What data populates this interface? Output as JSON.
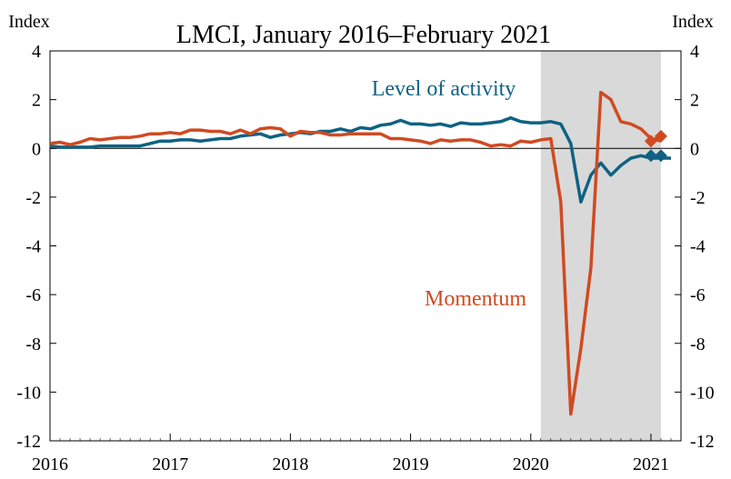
{
  "chart_data": {
    "type": "line",
    "title": "LMCI, January  2016–February  2021",
    "ylabel_left": "Index",
    "ylabel_right": "Index",
    "ylim": [
      -12,
      4
    ],
    "yticks": [
      4,
      2,
      0,
      -2,
      -4,
      -6,
      -8,
      -10,
      -12
    ],
    "xlim": [
      2016.0,
      2021.25
    ],
    "xticks": [
      2016,
      2017,
      2018,
      2019,
      2020,
      2021
    ],
    "xtick_labels": [
      "2016",
      "2017",
      "2018",
      "2019",
      "2020",
      "2021"
    ],
    "shaded_period": {
      "from": 2020.083,
      "to": 2021.083,
      "color": "#d9d9d9"
    },
    "zero_line": true,
    "grid": false,
    "series": [
      {
        "name": "Level of activity",
        "color": "#0f6283",
        "points": [
          [
            2016.0,
            0.1
          ],
          [
            2016.083,
            0.05
          ],
          [
            2016.167,
            0.05
          ],
          [
            2016.25,
            0.05
          ],
          [
            2016.333,
            0.05
          ],
          [
            2016.417,
            0.1
          ],
          [
            2016.5,
            0.1
          ],
          [
            2016.583,
            0.1
          ],
          [
            2016.667,
            0.1
          ],
          [
            2016.75,
            0.1
          ],
          [
            2016.833,
            0.2
          ],
          [
            2016.917,
            0.3
          ],
          [
            2017.0,
            0.3
          ],
          [
            2017.083,
            0.35
          ],
          [
            2017.167,
            0.35
          ],
          [
            2017.25,
            0.3
          ],
          [
            2017.333,
            0.35
          ],
          [
            2017.417,
            0.4
          ],
          [
            2017.5,
            0.4
          ],
          [
            2017.583,
            0.5
          ],
          [
            2017.667,
            0.55
          ],
          [
            2017.75,
            0.6
          ],
          [
            2017.833,
            0.45
          ],
          [
            2017.917,
            0.55
          ],
          [
            2018.0,
            0.6
          ],
          [
            2018.083,
            0.65
          ],
          [
            2018.167,
            0.6
          ],
          [
            2018.25,
            0.7
          ],
          [
            2018.333,
            0.7
          ],
          [
            2018.417,
            0.8
          ],
          [
            2018.5,
            0.7
          ],
          [
            2018.583,
            0.85
          ],
          [
            2018.667,
            0.8
          ],
          [
            2018.75,
            0.95
          ],
          [
            2018.833,
            1.0
          ],
          [
            2018.917,
            1.15
          ],
          [
            2019.0,
            1.0
          ],
          [
            2019.083,
            1.0
          ],
          [
            2019.167,
            0.95
          ],
          [
            2019.25,
            1.0
          ],
          [
            2019.333,
            0.9
          ],
          [
            2019.417,
            1.05
          ],
          [
            2019.5,
            1.0
          ],
          [
            2019.583,
            1.0
          ],
          [
            2019.667,
            1.05
          ],
          [
            2019.75,
            1.1
          ],
          [
            2019.833,
            1.25
          ],
          [
            2019.917,
            1.1
          ],
          [
            2020.0,
            1.05
          ],
          [
            2020.083,
            1.05
          ],
          [
            2020.167,
            1.1
          ],
          [
            2020.25,
            1.0
          ],
          [
            2020.333,
            0.2
          ],
          [
            2020.417,
            -2.2
          ],
          [
            2020.5,
            -1.1
          ],
          [
            2020.583,
            -0.6
          ],
          [
            2020.667,
            -1.1
          ],
          [
            2020.75,
            -0.7
          ],
          [
            2020.833,
            -0.4
          ],
          [
            2020.917,
            -0.3
          ],
          [
            2021.0,
            -0.4
          ],
          [
            2021.083,
            -0.4
          ],
          [
            2021.167,
            -0.4
          ]
        ],
        "marker_points": [
          [
            2021.0,
            -0.3
          ],
          [
            2021.083,
            -0.3
          ]
        ],
        "label": "Level of activity"
      },
      {
        "name": "Momentum",
        "color": "#d04a21",
        "points": [
          [
            2016.0,
            0.2
          ],
          [
            2016.083,
            0.25
          ],
          [
            2016.167,
            0.15
          ],
          [
            2016.25,
            0.25
          ],
          [
            2016.333,
            0.4
          ],
          [
            2016.417,
            0.35
          ],
          [
            2016.5,
            0.4
          ],
          [
            2016.583,
            0.45
          ],
          [
            2016.667,
            0.45
          ],
          [
            2016.75,
            0.5
          ],
          [
            2016.833,
            0.6
          ],
          [
            2016.917,
            0.6
          ],
          [
            2017.0,
            0.65
          ],
          [
            2017.083,
            0.6
          ],
          [
            2017.167,
            0.75
          ],
          [
            2017.25,
            0.75
          ],
          [
            2017.333,
            0.7
          ],
          [
            2017.417,
            0.7
          ],
          [
            2017.5,
            0.6
          ],
          [
            2017.583,
            0.75
          ],
          [
            2017.667,
            0.6
          ],
          [
            2017.75,
            0.8
          ],
          [
            2017.833,
            0.85
          ],
          [
            2017.917,
            0.8
          ],
          [
            2018.0,
            0.5
          ],
          [
            2018.083,
            0.7
          ],
          [
            2018.167,
            0.65
          ],
          [
            2018.25,
            0.65
          ],
          [
            2018.333,
            0.55
          ],
          [
            2018.417,
            0.55
          ],
          [
            2018.5,
            0.6
          ],
          [
            2018.583,
            0.6
          ],
          [
            2018.667,
            0.6
          ],
          [
            2018.75,
            0.6
          ],
          [
            2018.833,
            0.4
          ],
          [
            2018.917,
            0.4
          ],
          [
            2019.0,
            0.35
          ],
          [
            2019.083,
            0.3
          ],
          [
            2019.167,
            0.2
          ],
          [
            2019.25,
            0.35
          ],
          [
            2019.333,
            0.3
          ],
          [
            2019.417,
            0.35
          ],
          [
            2019.5,
            0.35
          ],
          [
            2019.583,
            0.25
          ],
          [
            2019.667,
            0.1
          ],
          [
            2019.75,
            0.15
          ],
          [
            2019.833,
            0.1
          ],
          [
            2019.917,
            0.3
          ],
          [
            2020.0,
            0.25
          ],
          [
            2020.083,
            0.35
          ],
          [
            2020.167,
            0.4
          ],
          [
            2020.25,
            -2.2
          ],
          [
            2020.333,
            -10.9
          ],
          [
            2020.417,
            -8.2
          ],
          [
            2020.5,
            -4.9
          ],
          [
            2020.583,
            2.3
          ],
          [
            2020.667,
            2.0
          ],
          [
            2020.75,
            1.1
          ],
          [
            2020.833,
            1.0
          ],
          [
            2020.917,
            0.8
          ],
          [
            2021.0,
            0.4
          ],
          [
            2021.083,
            0.3
          ]
        ],
        "marker_points": [
          [
            2021.0,
            0.3
          ],
          [
            2021.083,
            0.5
          ]
        ],
        "label": "Momentum"
      }
    ]
  }
}
